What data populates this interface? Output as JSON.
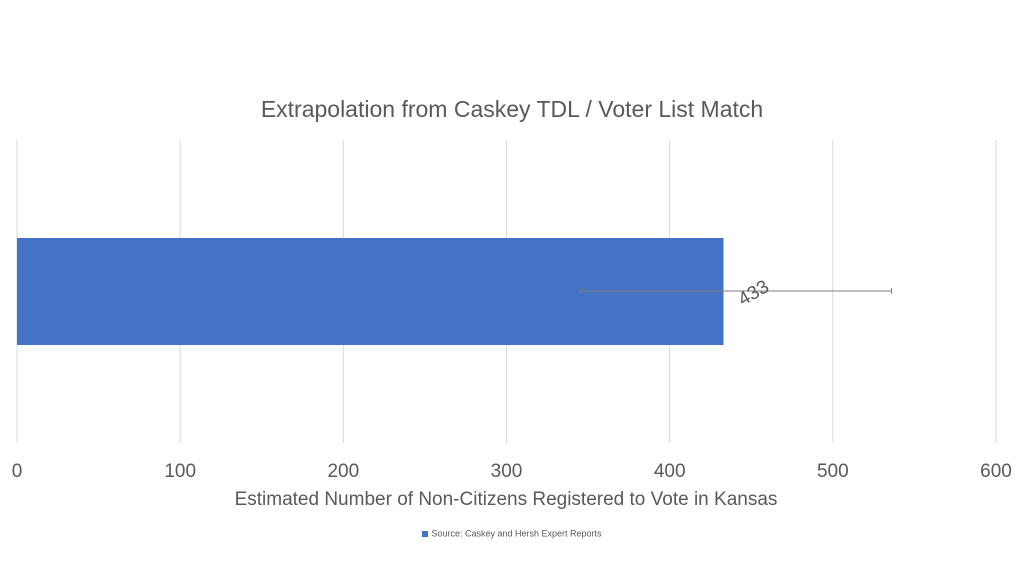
{
  "chart_data": {
    "type": "bar",
    "orientation": "horizontal",
    "title": "Extrapolation from Caskey TDL / Voter List Match",
    "xlabel": "Estimated Number of Non-Citizens Registered to Vote in Kansas",
    "ylabel": "",
    "xlim": [
      0,
      600
    ],
    "xticks": [
      0,
      100,
      200,
      300,
      400,
      500,
      600
    ],
    "grid": true,
    "legend_position": "bottom",
    "categories": [
      ""
    ],
    "series": [
      {
        "name": "Source: Caskey and Hersh Expert Reports",
        "values": [
          433
        ],
        "data_labels": [
          "433"
        ],
        "error_bars": [
          [
            345,
            536
          ]
        ],
        "color": "#4472C4"
      }
    ]
  },
  "colors": {
    "gridline": "#d9d9d9",
    "error_bar": "#7f7f7f",
    "text": "#595959"
  }
}
